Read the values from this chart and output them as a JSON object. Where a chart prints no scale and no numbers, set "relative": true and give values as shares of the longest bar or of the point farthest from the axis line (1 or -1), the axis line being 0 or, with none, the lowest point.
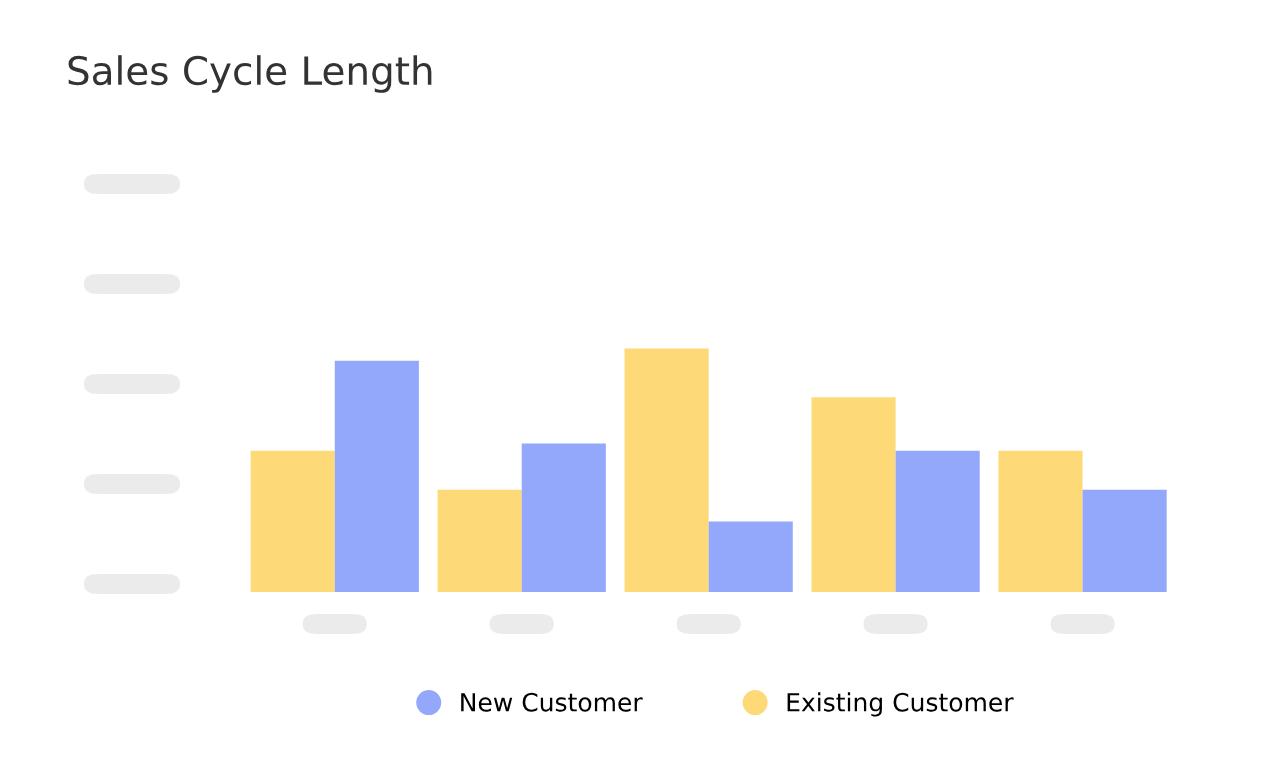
{
  "chart_data": {
    "type": "bar",
    "title": "Sales Cycle Length",
    "relative": true,
    "categories": [
      null,
      null,
      null,
      null,
      null
    ],
    "series": [
      {
        "name": "Existing Customer",
        "color": "#fdd978",
        "values": [
          0.58,
          0.42,
          1,
          0.8,
          0.58
        ]
      },
      {
        "name": "New Customer",
        "color": "#94a8fb",
        "values": [
          0.95,
          0.61,
          0.29,
          0.58,
          0.42
        ]
      }
    ],
    "legend": "bottom"
  }
}
